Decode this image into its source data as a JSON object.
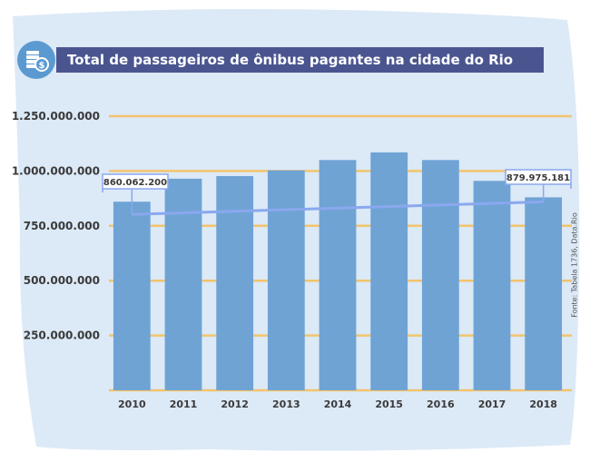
{
  "header": {
    "title": "Total de passageiros de ônibus pagantes na cidade do Rio",
    "icon": "coins-dollar-icon"
  },
  "source": "Fonte: Tabela 1736, Data.Rio",
  "colors": {
    "background": "#dce9f7",
    "title_bar": "#4a5590",
    "bar": "#6fa3d4",
    "gridline": "#f2c46d",
    "bracket": "#8aa8ee"
  },
  "chart_data": {
    "type": "bar",
    "title": "Total de passageiros de ônibus pagantes na cidade do Rio",
    "xlabel": "",
    "ylabel": "",
    "categories": [
      "2010",
      "2011",
      "2012",
      "2013",
      "2014",
      "2015",
      "2016",
      "2017",
      "2018"
    ],
    "values": [
      860062200,
      965000000,
      977000000,
      1003000000,
      1050000000,
      1085000000,
      1050000000,
      955000000,
      879975181
    ],
    "ylim": [
      0,
      1250000000
    ],
    "yticks": [
      250000000,
      500000000,
      750000000,
      1000000000,
      1250000000
    ],
    "ytick_labels": [
      "250.000.000",
      "500.000.000",
      "750.000.000",
      "1.000.000.000",
      "1.250.000.000"
    ],
    "grid": true,
    "annotations": [
      {
        "category": "2010",
        "label": "860.062.200"
      },
      {
        "category": "2018",
        "label": "879.975.181"
      }
    ]
  }
}
